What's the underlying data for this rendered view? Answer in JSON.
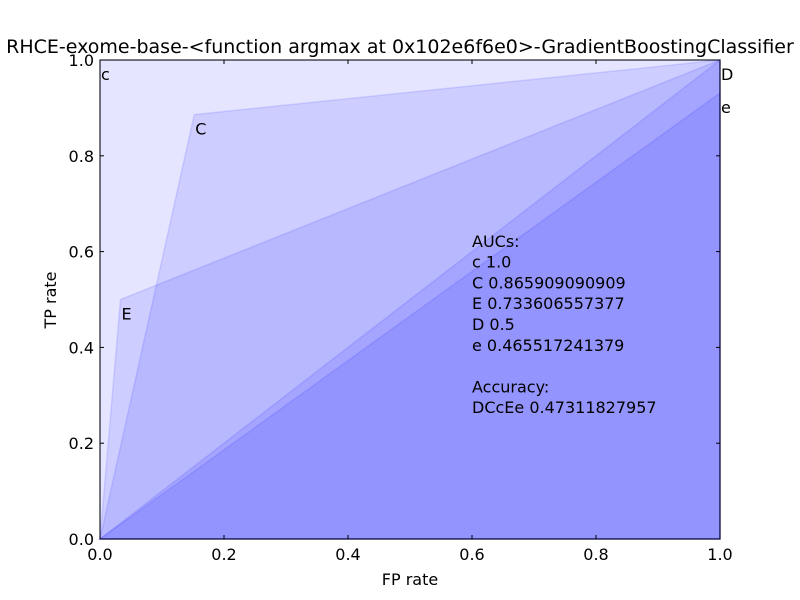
{
  "chart_data": {
    "type": "area",
    "title": "RHCE-exome-base-<function argmax at 0x102e6f6e0>-GradientBoostingClassifier",
    "xlabel": "FP rate",
    "ylabel": "TP rate",
    "xlim": [
      0.0,
      1.0
    ],
    "ylim": [
      0.0,
      1.0
    ],
    "x_ticks": [
      "0.0",
      "0.2",
      "0.4",
      "0.6",
      "0.8",
      "1.0"
    ],
    "y_ticks": [
      "0.0",
      "0.2",
      "0.4",
      "0.6",
      "0.8",
      "1.0"
    ],
    "grid": false,
    "fill_color": "#0000ff",
    "series": [
      {
        "name": "c",
        "x": [
          0.0,
          0.0,
          1.0,
          1.0
        ],
        "y": [
          0.0,
          1.0,
          1.0,
          0.0
        ],
        "label_at": [
          0.0,
          1.0
        ]
      },
      {
        "name": "C",
        "x": [
          0.0,
          0.152,
          1.0,
          1.0
        ],
        "y": [
          0.0,
          0.886,
          1.0,
          0.0
        ],
        "label_at": [
          0.152,
          0.886
        ]
      },
      {
        "name": "E",
        "x": [
          0.0,
          0.033,
          1.0,
          1.0
        ],
        "y": [
          0.0,
          0.5,
          1.0,
          0.0
        ],
        "label_at": [
          0.033,
          0.5
        ]
      },
      {
        "name": "D",
        "x": [
          0.0,
          1.0,
          1.0
        ],
        "y": [
          0.0,
          1.0,
          0.0
        ],
        "label_at": [
          1.0,
          1.0
        ]
      },
      {
        "name": "e",
        "x": [
          0.0,
          1.0,
          1.0
        ],
        "y": [
          0.0,
          0.931,
          0.0
        ],
        "label_at": [
          1.0,
          0.931
        ]
      }
    ],
    "annotation": {
      "lines": [
        "AUCs:",
        "c  1.0",
        "C  0.865909090909",
        "E  0.733606557377",
        "D  0.5",
        "e  0.465517241379",
        "",
        "Accuracy:",
        "DCcEe  0.47311827957"
      ],
      "at": [
        0.6,
        0.61
      ]
    }
  }
}
